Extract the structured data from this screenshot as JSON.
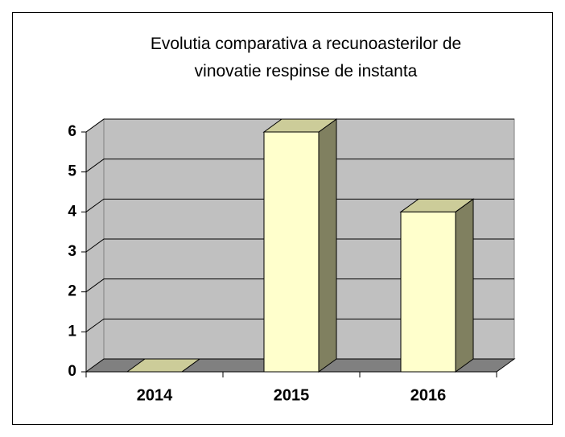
{
  "chart_data": {
    "type": "bar3d",
    "title": "Evolutia comparativa a recunoasterilor de vinovatie respinse de instanta",
    "categories": [
      "2014",
      "2015",
      "2016"
    ],
    "values": [
      0,
      6,
      4
    ],
    "color": "#ffffcc",
    "ylim": [
      0,
      6
    ],
    "yticks": [
      0,
      1,
      2,
      3,
      4,
      5,
      6
    ],
    "grid": true
  }
}
